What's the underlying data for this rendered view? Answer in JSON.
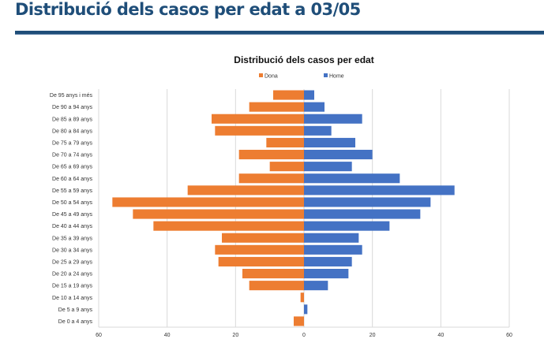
{
  "slide": {
    "title": "Distribució dels casos per edat a 03/05"
  },
  "colors": {
    "title": "#1f4e79",
    "dona": "#ed7d31",
    "home": "#4472c4",
    "grid": "#d9d9d9"
  },
  "chart_data": {
    "type": "bar",
    "orientation": "horizontal-butterfly",
    "title": "Distribució dels casos per edat",
    "xlabel": "",
    "ylabel": "",
    "xlim": [
      -60,
      60
    ],
    "x_ticks": [
      -60,
      -40,
      -20,
      0,
      20,
      40,
      60
    ],
    "x_tick_labels": [
      "60",
      "40",
      "20",
      "0",
      "20",
      "40",
      "60"
    ],
    "grid": "vertical",
    "legend": {
      "position": "top",
      "entries": [
        "Dona",
        "Home"
      ]
    },
    "categories": [
      "De 0 a 4 anys",
      "De 5 a 9 anys",
      "De 10 a 14 anys",
      "De 15 a 19 anys",
      "De 20 a 24 anys",
      "De 25 a 29 anys",
      "De 30 a 34 anys",
      "De 35 a 39 anys",
      "De 40 a 44 anys",
      "De 45 a 49 anys",
      "De 50 a 54 anys",
      "De 55 a 59 anys",
      "De 60 a 64 anys",
      "De 65 a 69 anys",
      "De 70 a 74 anys",
      "De 75 a 79 anys",
      "De 80 a 84 anys",
      "De 85 a 89 anys",
      "De 90 a 94 anys",
      "De 95 anys i més"
    ],
    "series": [
      {
        "name": "Dona",
        "side": "left",
        "values": [
          3,
          0,
          1,
          16,
          18,
          25,
          26,
          24,
          44,
          50,
          56,
          34,
          19,
          10,
          19,
          11,
          26,
          27,
          16,
          9
        ]
      },
      {
        "name": "Home",
        "side": "right",
        "values": [
          0,
          1,
          0,
          7,
          13,
          14,
          17,
          16,
          25,
          34,
          37,
          44,
          28,
          14,
          20,
          15,
          8,
          17,
          6,
          3
        ]
      }
    ]
  }
}
